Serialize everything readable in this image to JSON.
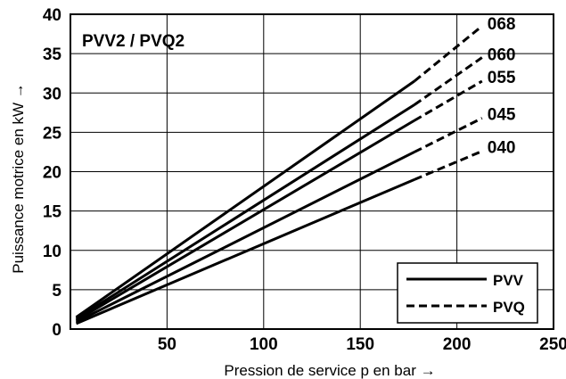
{
  "chart_data": {
    "type": "line",
    "title": "PVV2 / PVQ2",
    "xlabel": "Pression de service p en bar →",
    "ylabel": "Puissance motrice en kW →",
    "xlim": [
      0,
      250
    ],
    "ylim": [
      0,
      40
    ],
    "xticks": [
      "0",
      "50",
      "100",
      "150",
      "200",
      "250"
    ],
    "yticks": [
      "0",
      "5",
      "10",
      "15",
      "20",
      "25",
      "30",
      "35",
      "40"
    ],
    "grid": true,
    "legend": {
      "position": "bottom-right",
      "entries": [
        {
          "label": "PVV",
          "style": "solid"
        },
        {
          "label": "PVQ",
          "style": "dashed"
        }
      ]
    },
    "series": [
      {
        "name": "068",
        "solid": [
          [
            3,
            1.5
          ],
          [
            178,
            31.5
          ]
        ],
        "dashed": [
          [
            178,
            31.5
          ],
          [
            213,
            38.5
          ]
        ]
      },
      {
        "name": "060",
        "solid": [
          [
            3,
            1.3
          ],
          [
            178,
            28.5
          ]
        ],
        "dashed": [
          [
            178,
            28.5
          ],
          [
            213,
            34.5
          ]
        ]
      },
      {
        "name": "055",
        "solid": [
          [
            3,
            1.1
          ],
          [
            178,
            26.5
          ]
        ],
        "dashed": [
          [
            178,
            26.5
          ],
          [
            213,
            31.5
          ]
        ]
      },
      {
        "name": "045",
        "solid": [
          [
            3,
            0.9
          ],
          [
            178,
            22.5
          ]
        ],
        "dashed": [
          [
            178,
            22.5
          ],
          [
            213,
            26.8
          ]
        ]
      },
      {
        "name": "040",
        "solid": [
          [
            3,
            0.7
          ],
          [
            178,
            19
          ]
        ],
        "dashed": [
          [
            178,
            19
          ],
          [
            213,
            22.6
          ]
        ]
      }
    ]
  },
  "colors": {
    "line": "#000000",
    "grid": "#000000",
    "background": "#ffffff"
  }
}
